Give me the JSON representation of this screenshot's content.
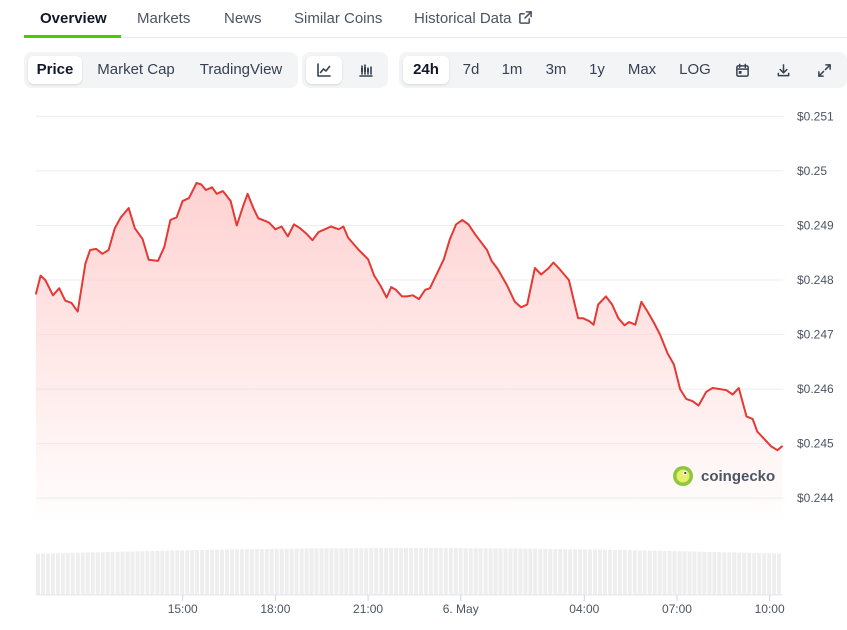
{
  "tabs": [
    {
      "label": "Overview"
    },
    {
      "label": "Markets"
    },
    {
      "label": "News"
    },
    {
      "label": "Similar Coins"
    },
    {
      "label": "Historical Data",
      "icon": "external-link-icon"
    }
  ],
  "active_tab": "Overview",
  "chart_type_buttons": [
    "Price",
    "Market Cap",
    "TradingView"
  ],
  "active_chart_type": "Price",
  "view_icons": [
    "line-chart-icon",
    "candlestick-icon"
  ],
  "active_view": "line-chart-icon",
  "range_buttons": [
    "24h",
    "7d",
    "1m",
    "3m",
    "1y",
    "Max",
    "LOG"
  ],
  "active_range": "24h",
  "tool_icons": [
    "calendar-icon",
    "download-icon",
    "fullscreen-icon"
  ],
  "watermark": {
    "text": "coingecko",
    "icon": "gecko-logo-icon"
  },
  "colors": {
    "line": "#e53935",
    "fill_top": "#ffd2d2",
    "tab_accent": "#4bcc00",
    "volume_bar": "#eeeeee"
  },
  "chart_data": {
    "type": "area",
    "y_tick_labels": [
      "$0.251",
      "$0.25",
      "$0.249",
      "$0.248",
      "$0.247",
      "$0.246",
      "$0.245",
      "$0.244"
    ],
    "y_ticks": [
      0.251,
      0.25,
      0.249,
      0.248,
      0.247,
      0.246,
      0.245,
      0.244
    ],
    "ylim": [
      0.2436,
      0.2513
    ],
    "x_tick_labels": [
      "15:00",
      "18:00",
      "21:00",
      "6. May",
      "04:00",
      "07:00",
      "10:00"
    ],
    "x_ticks": [
      15,
      18,
      21,
      24,
      28,
      31,
      34
    ],
    "xlim": [
      10.25,
      34.4
    ],
    "grid": true,
    "legend": "none",
    "series": [
      {
        "x": [
          10.25,
          10.4,
          10.55,
          10.8,
          11.0,
          11.2,
          11.4,
          11.6,
          11.85,
          12.0,
          12.2,
          12.4,
          12.6,
          12.8,
          13.0,
          13.25,
          13.45,
          13.7,
          13.9,
          14.2,
          14.4,
          14.6,
          14.8,
          15.0,
          15.2,
          15.45,
          15.6,
          15.75,
          15.95,
          16.1,
          16.3,
          16.55,
          16.75,
          16.95,
          17.1,
          17.3,
          17.45,
          17.6,
          17.8,
          18.0,
          18.2,
          18.4,
          18.6,
          18.8,
          19.0,
          19.2,
          19.4,
          19.6,
          19.8,
          20.05,
          20.2,
          20.35,
          20.5,
          20.7,
          21.0,
          21.2,
          21.4,
          21.6,
          21.75,
          21.9,
          22.1,
          22.25,
          22.45,
          22.65,
          22.85,
          23.0,
          23.2,
          23.45,
          23.65,
          23.85,
          24.05,
          24.25,
          24.45,
          24.65,
          24.85,
          25.0,
          25.2,
          25.5,
          25.75,
          25.95,
          26.15,
          26.4,
          26.6,
          26.85,
          27.0,
          27.2,
          27.5,
          27.65,
          27.8,
          27.95,
          28.15,
          28.3,
          28.45,
          28.7,
          28.9,
          29.1,
          29.3,
          29.45,
          29.65,
          29.85,
          30.05,
          30.25,
          30.45,
          30.7,
          30.9,
          31.1,
          31.3,
          31.5,
          31.7,
          31.95,
          32.15,
          32.4,
          32.6,
          32.8,
          33.0,
          33.25,
          33.45,
          33.6,
          33.8,
          34.05,
          34.25,
          34.4
        ],
        "y": [
          0.24775,
          0.24808,
          0.248,
          0.24772,
          0.24785,
          0.24762,
          0.24758,
          0.24742,
          0.2483,
          0.24855,
          0.24857,
          0.24848,
          0.24855,
          0.24895,
          0.24915,
          0.24932,
          0.24895,
          0.24875,
          0.24837,
          0.24835,
          0.2486,
          0.2491,
          0.24915,
          0.24945,
          0.2495,
          0.24978,
          0.24975,
          0.24965,
          0.2497,
          0.24958,
          0.24963,
          0.24945,
          0.249,
          0.24935,
          0.24958,
          0.2493,
          0.24913,
          0.2491,
          0.24905,
          0.24893,
          0.24898,
          0.2488,
          0.24902,
          0.24895,
          0.24885,
          0.24873,
          0.24888,
          0.24893,
          0.24898,
          0.24893,
          0.24898,
          0.24878,
          0.24868,
          0.24855,
          0.24838,
          0.24808,
          0.2479,
          0.24768,
          0.24787,
          0.24782,
          0.2477,
          0.2477,
          0.24772,
          0.24765,
          0.24782,
          0.24785,
          0.24808,
          0.24838,
          0.24875,
          0.24902,
          0.2491,
          0.24902,
          0.24885,
          0.2487,
          0.24855,
          0.24835,
          0.2482,
          0.2479,
          0.2476,
          0.2475,
          0.24755,
          0.24822,
          0.2481,
          0.24822,
          0.24832,
          0.2482,
          0.248,
          0.24765,
          0.2473,
          0.2473,
          0.24725,
          0.24718,
          0.24755,
          0.2477,
          0.24755,
          0.2473,
          0.24717,
          0.24723,
          0.24718,
          0.2476,
          0.24742,
          0.24722,
          0.247,
          0.24665,
          0.24645,
          0.246,
          0.24582,
          0.24578,
          0.2457,
          0.24595,
          0.24602,
          0.246,
          0.24598,
          0.2459,
          0.24602,
          0.2455,
          0.24545,
          0.24522,
          0.2451,
          0.24495,
          0.24488,
          0.24495
        ]
      }
    ],
    "volume_bars": "decorative, unlabeled"
  }
}
